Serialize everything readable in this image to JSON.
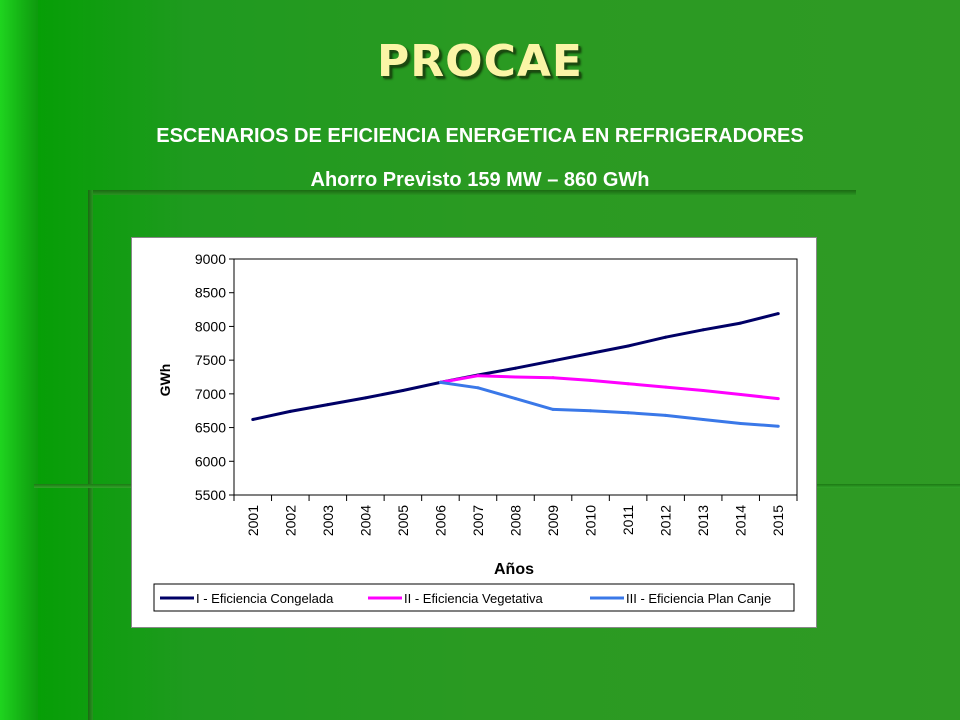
{
  "header": {
    "title": "PROCAE",
    "subtitle": "ESCENARIOS DE EFICIENCIA ENERGETICA EN REFRIGERADORES",
    "subtitle2": "Ahorro Previsto 159 MW – 860 GWh"
  },
  "colors": {
    "background": "#2f9a24",
    "title": "#fbf5a6",
    "series_1": "#000066",
    "series_2": "#ff00ff",
    "series_3": "#3a78e8"
  },
  "chart_data": {
    "type": "line",
    "x": [
      "2001",
      "2002",
      "2003",
      "2004",
      "2005",
      "2006",
      "2007",
      "2008",
      "2009",
      "2010",
      "2011",
      "2012",
      "2013",
      "2014",
      "2015"
    ],
    "series": [
      {
        "name": "I - Eficiencia Congelada",
        "values": [
          6620,
          6740,
          6840,
          6940,
          7050,
          7170,
          7280,
          7380,
          7490,
          7600,
          7710,
          7840,
          7950,
          8050,
          8190
        ]
      },
      {
        "name": "II - Eficiencia Vegetativa",
        "values": [
          null,
          null,
          null,
          null,
          null,
          7170,
          7270,
          7250,
          7240,
          7200,
          7150,
          7100,
          7050,
          6990,
          6930
        ]
      },
      {
        "name": "III - Eficiencia Plan Canje",
        "values": [
          null,
          null,
          null,
          null,
          null,
          7170,
          7090,
          6930,
          6770,
          6750,
          6720,
          6680,
          6620,
          6560,
          6520
        ]
      }
    ],
    "xlabel": "Años",
    "ylabel": "GWh",
    "ylim": [
      5500,
      9000
    ],
    "yticks": [
      "5500",
      "6000",
      "6500",
      "7000",
      "7500",
      "8000",
      "8500",
      "9000"
    ],
    "grid": true,
    "legend": "bottom"
  }
}
